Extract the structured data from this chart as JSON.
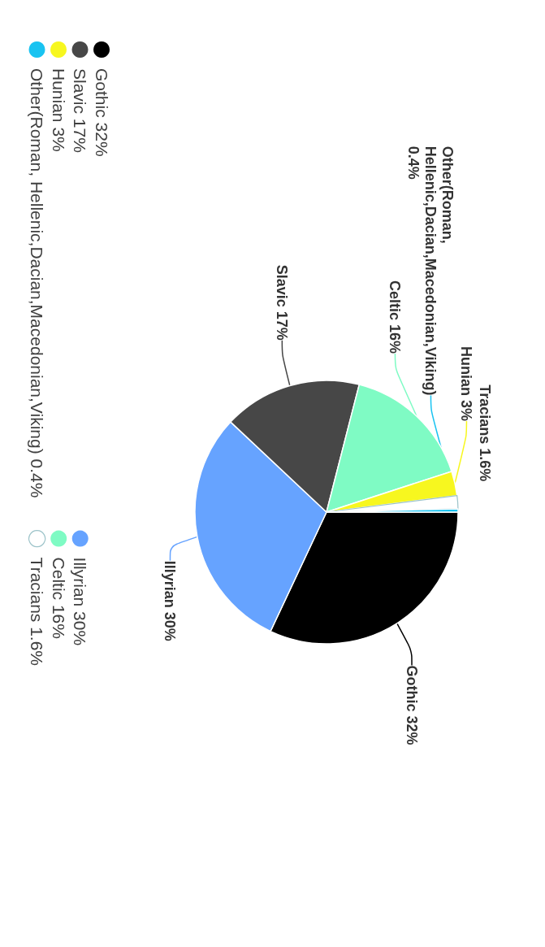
{
  "chart_data": {
    "type": "pie",
    "categories": [
      "Gothic",
      "Illyrian",
      "Slavic",
      "Celtic",
      "Hunian",
      "Tracians",
      "Other(Roman, Hellenic,Dacian,Macedonian,Viking)"
    ],
    "values": [
      32,
      30,
      17,
      16,
      3,
      1.6,
      0.4
    ],
    "colors": [
      "#000000",
      "#66a3ff",
      "#474747",
      "#7ffbc4",
      "#f7f71f",
      "#ffffff",
      "#19c3f1"
    ],
    "value_labels": [
      "32%",
      "30%",
      "17%",
      "16%",
      "3%",
      "1.6%",
      "0.4%"
    ],
    "legend": "left"
  }
}
